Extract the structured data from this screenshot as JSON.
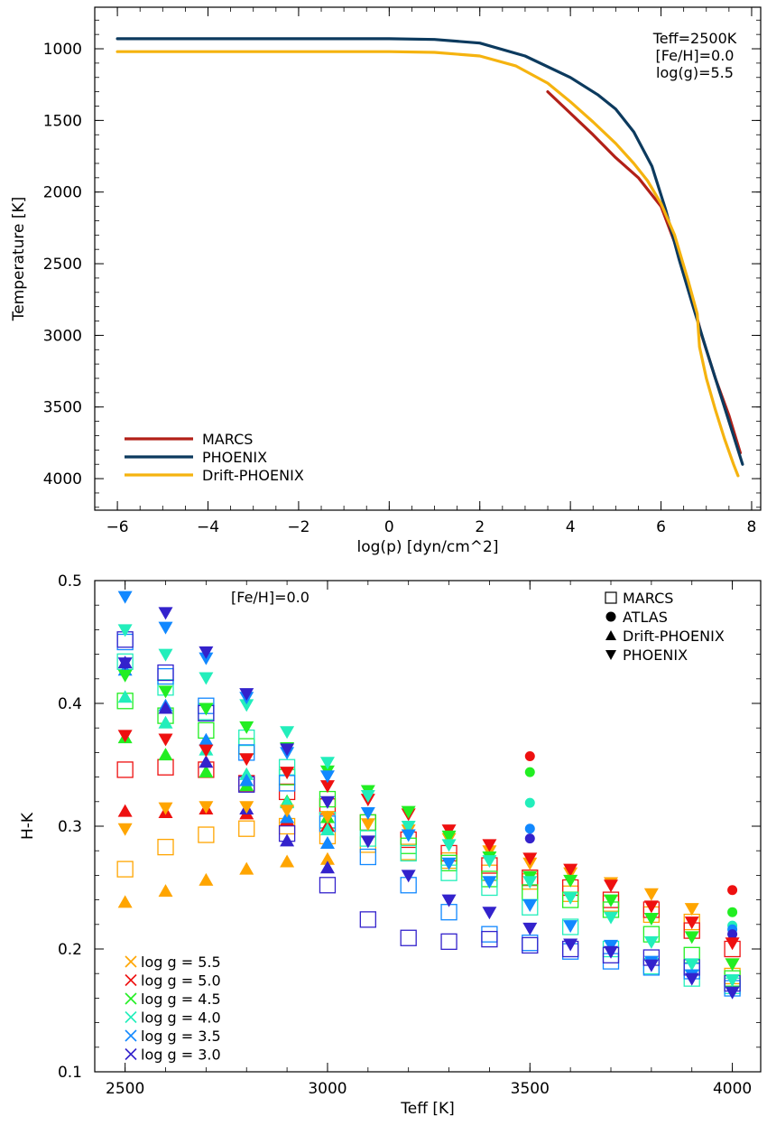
{
  "chart_data": [
    {
      "type": "line",
      "title": "",
      "xlabel": "log(p)  [dyn/cm^2]",
      "ylabel": "Temperature [K]",
      "xlim": [
        -6.5,
        8.2
      ],
      "ylim": [
        4220,
        710
      ],
      "xticks": [
        -6,
        -4,
        -2,
        0,
        2,
        4,
        6,
        8
      ],
      "yticks": [
        1000,
        1500,
        2000,
        2500,
        3000,
        3500,
        4000
      ],
      "annotation": [
        "Teff=2500K",
        "[Fe/H]=0.0",
        "log(g)=5.5"
      ],
      "legend_position": "bottom-left",
      "series": [
        {
          "name": "MARCS",
          "color": "#b22018",
          "x": [
            3.5,
            4.0,
            4.5,
            5.0,
            5.5,
            6.0,
            6.3,
            6.6,
            6.9,
            7.2,
            7.5,
            7.75
          ],
          "y": [
            1300,
            1450,
            1600,
            1760,
            1900,
            2100,
            2350,
            2650,
            3000,
            3300,
            3560,
            3820
          ]
        },
        {
          "name": "PHOENIX",
          "color": "#0c3a5e",
          "x": [
            -6,
            -4,
            -2,
            0,
            1,
            2,
            3,
            4,
            4.6,
            5.0,
            5.4,
            5.8,
            6.1,
            6.4,
            6.7,
            7.0,
            7.3,
            7.6,
            7.8
          ],
          "y": [
            930,
            930,
            930,
            930,
            935,
            960,
            1050,
            1200,
            1320,
            1420,
            1580,
            1820,
            2120,
            2470,
            2790,
            3100,
            3400,
            3700,
            3900
          ]
        },
        {
          "name": "Drift-PHOENIX",
          "color": "#f5b30f",
          "x": [
            -6,
            -4,
            -2,
            0,
            1,
            2,
            2.8,
            3.5,
            4.0,
            4.5,
            5.0,
            5.4,
            5.7,
            6.0,
            6.3,
            6.6,
            6.8,
            6.85,
            7.0,
            7.2,
            7.4,
            7.6,
            7.7
          ],
          "y": [
            1020,
            1020,
            1020,
            1020,
            1025,
            1050,
            1120,
            1240,
            1370,
            1510,
            1660,
            1800,
            1920,
            2080,
            2300,
            2620,
            2850,
            3080,
            3300,
            3520,
            3720,
            3900,
            3980
          ]
        }
      ]
    },
    {
      "type": "scatter",
      "title": "",
      "xlabel": "Teff [K]",
      "ylabel": "H-K",
      "xlim": [
        2425,
        4070
      ],
      "ylim": [
        0.1,
        0.5
      ],
      "xticks": [
        2500,
        3000,
        3500,
        4000
      ],
      "yticks": [
        0.1,
        0.2,
        0.3,
        0.4,
        0.5
      ],
      "annotation": "[Fe/H]=0.0",
      "marker_legend_position": "top-right",
      "marker_legend": [
        {
          "symbol": "square-open",
          "label": "MARCS"
        },
        {
          "symbol": "circle",
          "label": "ATLAS"
        },
        {
          "symbol": "triangle-up",
          "label": "Drift-PHOENIX"
        },
        {
          "symbol": "triangle-down",
          "label": "PHOENIX"
        }
      ],
      "color_legend_position": "bottom-left",
      "color_legend": [
        {
          "label": "log g = 5.5",
          "color": "#ffa500"
        },
        {
          "label": "log g = 5.0",
          "color": "#ee1010"
        },
        {
          "label": "log g = 4.5",
          "color": "#22ee22"
        },
        {
          "label": "log g = 4.0",
          "color": "#22eebb"
        },
        {
          "label": "log g = 3.5",
          "color": "#1188ff"
        },
        {
          "label": "log g = 3.0",
          "color": "#3322cc"
        }
      ],
      "series": [
        {
          "model": "MARCS",
          "logg": "5.5",
          "marker": "square-open",
          "color": "#ffa500",
          "x": [
            2500,
            2600,
            2700,
            2800,
            2900,
            3000,
            3100,
            3200,
            3300,
            3400,
            3500,
            3600,
            3700,
            3800,
            3900,
            4000
          ],
          "y": [
            0.265,
            0.283,
            0.293,
            0.298,
            0.3,
            0.292,
            0.285,
            0.279,
            0.272,
            0.262,
            0.255,
            0.245,
            0.237,
            0.228,
            0.222,
            0.178
          ]
        },
        {
          "model": "MARCS",
          "logg": "5.0",
          "marker": "square-open",
          "color": "#ee1010",
          "x": [
            2500,
            2600,
            2700,
            2800,
            2900,
            3000,
            3100,
            3200,
            3300,
            3400,
            3500,
            3600,
            3700,
            3800,
            3900,
            4000
          ],
          "y": [
            0.346,
            0.348,
            0.346,
            0.335,
            0.328,
            0.316,
            0.303,
            0.289,
            0.278,
            0.268,
            0.258,
            0.25,
            0.24,
            0.232,
            0.215,
            0.2
          ]
        },
        {
          "model": "MARCS",
          "logg": "4.5",
          "marker": "square-open",
          "color": "#22ee22",
          "x": [
            2500,
            2600,
            2700,
            2800,
            2900,
            3000,
            3100,
            3200,
            3300,
            3400,
            3500,
            3600,
            3700,
            3800,
            3900,
            4000
          ],
          "y": [
            0.402,
            0.39,
            0.378,
            0.365,
            0.34,
            0.322,
            0.303,
            0.284,
            0.27,
            0.257,
            0.246,
            0.24,
            0.232,
            0.212,
            0.195,
            0.176
          ]
        },
        {
          "model": "MARCS",
          "logg": "4.0",
          "marker": "square-open",
          "color": "#22eebb",
          "x": [
            2500,
            2600,
            2700,
            2800,
            2900,
            3000,
            3100,
            3200,
            3300,
            3400,
            3500,
            3600,
            3700,
            3800,
            3900,
            4000
          ],
          "y": [
            0.434,
            0.413,
            0.393,
            0.372,
            0.348,
            0.305,
            0.29,
            0.278,
            0.262,
            0.25,
            0.234,
            0.218,
            0.2,
            0.186,
            0.176,
            0.17
          ]
        },
        {
          "model": "MARCS",
          "logg": "3.5",
          "marker": "square-open",
          "color": "#1188ff",
          "x": [
            2500,
            2600,
            2700,
            2800,
            2900,
            3000,
            3100,
            3200,
            3300,
            3400,
            3500,
            3600,
            3700,
            3800,
            3900,
            4000
          ],
          "y": [
            0.45,
            0.422,
            0.398,
            0.36,
            0.335,
            0.302,
            0.275,
            0.252,
            0.23,
            0.212,
            0.205,
            0.198,
            0.19,
            0.185,
            0.182,
            0.168
          ]
        },
        {
          "model": "MARCS",
          "logg": "3.0",
          "marker": "square-open",
          "color": "#3322cc",
          "x": [
            2500,
            2600,
            2700,
            2800,
            2900,
            3000,
            3100,
            3200,
            3300,
            3400,
            3500,
            3600,
            3700,
            3800,
            3900,
            4000
          ],
          "y": [
            0.452,
            0.425,
            0.392,
            0.334,
            0.294,
            0.252,
            0.224,
            0.209,
            0.206,
            0.208,
            0.203,
            0.2,
            0.195,
            0.193,
            0.185,
            0.172
          ]
        },
        {
          "model": "ATLAS",
          "logg": "5.0",
          "marker": "circle",
          "color": "#ee1010",
          "x": [
            3500,
            4000
          ],
          "y": [
            0.357,
            0.248
          ]
        },
        {
          "model": "ATLAS",
          "logg": "4.5",
          "marker": "circle",
          "color": "#22ee22",
          "x": [
            3500,
            4000
          ],
          "y": [
            0.344,
            0.23
          ]
        },
        {
          "model": "ATLAS",
          "logg": "4.0",
          "marker": "circle",
          "color": "#22eebb",
          "x": [
            3500,
            4000
          ],
          "y": [
            0.319,
            0.219
          ]
        },
        {
          "model": "ATLAS",
          "logg": "3.5",
          "marker": "circle",
          "color": "#1188ff",
          "x": [
            3500,
            4000
          ],
          "y": [
            0.298,
            0.216
          ]
        },
        {
          "model": "ATLAS",
          "logg": "3.0",
          "marker": "circle",
          "color": "#3322cc",
          "x": [
            3500,
            4000
          ],
          "y": [
            0.29,
            0.212
          ]
        },
        {
          "model": "Drift-PHOENIX",
          "logg": "5.5",
          "marker": "triangle-up",
          "color": "#ffa500",
          "x": [
            2500,
            2600,
            2700,
            2800,
            2900,
            3000
          ],
          "y": [
            0.238,
            0.247,
            0.256,
            0.265,
            0.271,
            0.273
          ]
        },
        {
          "model": "Drift-PHOENIX",
          "logg": "5.0",
          "marker": "triangle-up",
          "color": "#ee1010",
          "x": [
            2500,
            2600,
            2700,
            2800,
            2900,
            3000
          ],
          "y": [
            0.312,
            0.311,
            0.314,
            0.31,
            0.305,
            0.3
          ]
        },
        {
          "model": "Drift-PHOENIX",
          "logg": "4.5",
          "marker": "triangle-up",
          "color": "#22ee22",
          "x": [
            2500,
            2600,
            2700,
            2800,
            2900,
            3000
          ],
          "y": [
            0.372,
            0.358,
            0.344,
            0.333,
            0.32,
            0.307
          ]
        },
        {
          "model": "Drift-PHOENIX",
          "logg": "4.0",
          "marker": "triangle-up",
          "color": "#22eebb",
          "x": [
            2500,
            2600,
            2700,
            2800,
            2900,
            3000
          ],
          "y": [
            0.405,
            0.384,
            0.362,
            0.342,
            0.319,
            0.297
          ]
        },
        {
          "model": "Drift-PHOENIX",
          "logg": "3.5",
          "marker": "triangle-up",
          "color": "#1188ff",
          "x": [
            2500,
            2600,
            2700,
            2800,
            2900,
            3000
          ],
          "y": [
            0.427,
            0.398,
            0.37,
            0.337,
            0.307,
            0.286
          ]
        },
        {
          "model": "Drift-PHOENIX",
          "logg": "3.0",
          "marker": "triangle-up",
          "color": "#3322cc",
          "x": [
            2500,
            2600,
            2700,
            2800,
            2900,
            3000
          ],
          "y": [
            0.433,
            0.396,
            0.352,
            0.314,
            0.288,
            0.266
          ]
        },
        {
          "model": "PHOENIX",
          "logg": "5.5",
          "marker": "triangle-down",
          "color": "#ffa500",
          "x": [
            2500,
            2600,
            2700,
            2800,
            2900,
            3000,
            3100,
            3200,
            3300,
            3400,
            3500,
            3600,
            3700,
            3800,
            3900,
            4000
          ],
          "y": [
            0.298,
            0.315,
            0.316,
            0.316,
            0.313,
            0.308,
            0.302,
            0.297,
            0.29,
            0.28,
            0.27,
            0.262,
            0.254,
            0.245,
            0.233,
            0.188
          ]
        },
        {
          "model": "PHOENIX",
          "logg": "5.0",
          "marker": "triangle-down",
          "color": "#ee1010",
          "x": [
            2500,
            2600,
            2700,
            2800,
            2900,
            3000,
            3100,
            3200,
            3300,
            3400,
            3500,
            3600,
            3700,
            3800,
            3900,
            4000
          ],
          "y": [
            0.374,
            0.371,
            0.362,
            0.355,
            0.344,
            0.333,
            0.322,
            0.31,
            0.297,
            0.285,
            0.274,
            0.265,
            0.252,
            0.235,
            0.222,
            0.205
          ]
        },
        {
          "model": "PHOENIX",
          "logg": "4.5",
          "marker": "triangle-down",
          "color": "#22ee22",
          "x": [
            2500,
            2600,
            2700,
            2800,
            2900,
            3000,
            3100,
            3200,
            3300,
            3400,
            3500,
            3600,
            3700,
            3800,
            3900,
            4000
          ],
          "y": [
            0.423,
            0.41,
            0.396,
            0.381,
            0.364,
            0.345,
            0.329,
            0.312,
            0.292,
            0.275,
            0.259,
            0.256,
            0.24,
            0.225,
            0.21,
            0.188
          ]
        },
        {
          "model": "PHOENIX",
          "logg": "4.0",
          "marker": "triangle-down",
          "color": "#22eebb",
          "x": [
            2500,
            2600,
            2700,
            2800,
            2900,
            3000,
            3100,
            3200,
            3300,
            3400,
            3500,
            3600,
            3700,
            3800,
            3900,
            4000
          ],
          "y": [
            0.46,
            0.44,
            0.421,
            0.399,
            0.377,
            0.352,
            0.325,
            0.3,
            0.285,
            0.272,
            0.255,
            0.242,
            0.226,
            0.206,
            0.188,
            0.175
          ]
        },
        {
          "model": "PHOENIX",
          "logg": "3.5",
          "marker": "triangle-down",
          "color": "#1188ff",
          "x": [
            2500,
            2600,
            2700,
            2800,
            2900,
            3000,
            3100,
            3200,
            3300,
            3400,
            3500,
            3600,
            3700,
            3800,
            3900,
            4000
          ],
          "y": [
            0.487,
            0.462,
            0.437,
            0.405,
            0.36,
            0.341,
            0.311,
            0.293,
            0.27,
            0.255,
            0.236,
            0.219,
            0.203,
            0.19,
            0.179,
            0.165
          ]
        },
        {
          "model": "PHOENIX",
          "logg": "3.0",
          "marker": "triangle-down",
          "color": "#3322cc",
          "x": [
            2500,
            2600,
            2700,
            2800,
            2900,
            3000,
            3100,
            3200,
            3300,
            3400,
            3500,
            3600,
            3700,
            3800,
            3900,
            4000
          ],
          "y": [
            0.433,
            0.474,
            0.442,
            0.408,
            0.363,
            0.32,
            0.288,
            0.26,
            0.24,
            0.23,
            0.217,
            0.204,
            0.198,
            0.187,
            0.176,
            0.165
          ]
        }
      ]
    }
  ]
}
